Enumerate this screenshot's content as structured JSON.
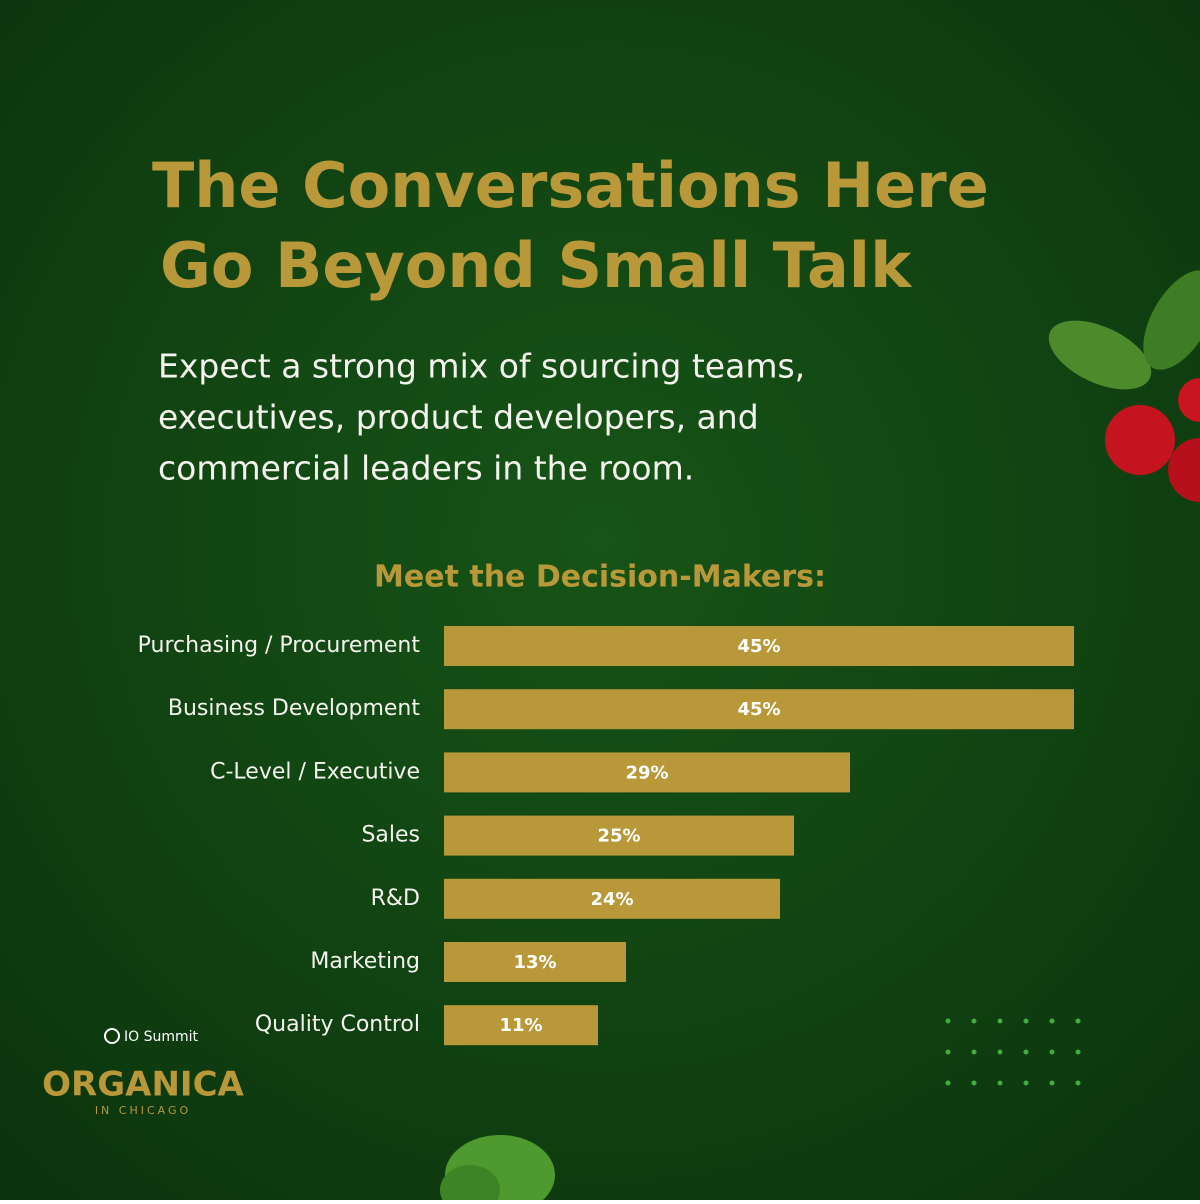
{
  "header": {
    "title_lines": [
      "The Conversations Here",
      "Go Beyond Small Talk"
    ],
    "description_lines": [
      "Expect a strong mix of sourcing teams,",
      "executives, product developers, and",
      "commercial leaders in the room."
    ]
  },
  "logo": {
    "brand": "IO Summit",
    "name": "ORGANICA",
    "place": "IN CHICAGO"
  },
  "chart_data": {
    "type": "hbar",
    "title": "Meet the Decision-Makers:",
    "categories": [
      "Purchasing / Procurement",
      "Business Development",
      "C-Level / Executive",
      "Sales",
      "R&D",
      "Marketing",
      "Quality Control"
    ],
    "values": [
      45,
      45,
      29,
      25,
      24,
      13,
      11
    ],
    "value_labels": [
      "45%",
      "45%",
      "29%",
      "25%",
      "24%",
      "13%",
      "11%"
    ],
    "color": "#b9983a"
  }
}
